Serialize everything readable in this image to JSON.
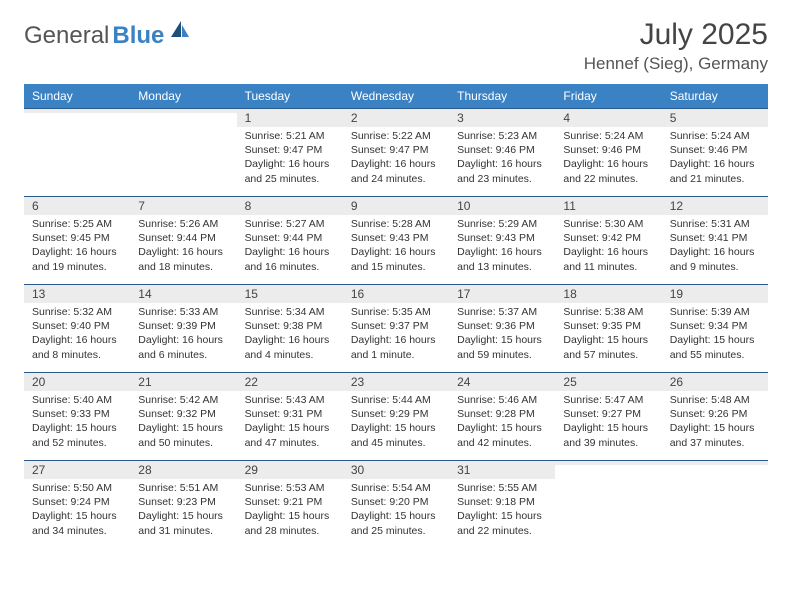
{
  "brand": {
    "part1": "General",
    "part2": "Blue"
  },
  "title": "July 2025",
  "location": "Hennef (Sieg), Germany",
  "colors": {
    "accent": "#3b82c4",
    "row_gray": "#ececec",
    "divider": "#2b5a8a",
    "background": "#ffffff"
  },
  "weekdays": [
    "Sunday",
    "Monday",
    "Tuesday",
    "Wednesday",
    "Thursday",
    "Friday",
    "Saturday"
  ],
  "weeks": [
    [
      {
        "n": "",
        "sr": "",
        "ss": "",
        "dl": ""
      },
      {
        "n": "",
        "sr": "",
        "ss": "",
        "dl": ""
      },
      {
        "n": "1",
        "sr": "5:21 AM",
        "ss": "9:47 PM",
        "dl": "16 hours and 25 minutes."
      },
      {
        "n": "2",
        "sr": "5:22 AM",
        "ss": "9:47 PM",
        "dl": "16 hours and 24 minutes."
      },
      {
        "n": "3",
        "sr": "5:23 AM",
        "ss": "9:46 PM",
        "dl": "16 hours and 23 minutes."
      },
      {
        "n": "4",
        "sr": "5:24 AM",
        "ss": "9:46 PM",
        "dl": "16 hours and 22 minutes."
      },
      {
        "n": "5",
        "sr": "5:24 AM",
        "ss": "9:46 PM",
        "dl": "16 hours and 21 minutes."
      }
    ],
    [
      {
        "n": "6",
        "sr": "5:25 AM",
        "ss": "9:45 PM",
        "dl": "16 hours and 19 minutes."
      },
      {
        "n": "7",
        "sr": "5:26 AM",
        "ss": "9:44 PM",
        "dl": "16 hours and 18 minutes."
      },
      {
        "n": "8",
        "sr": "5:27 AM",
        "ss": "9:44 PM",
        "dl": "16 hours and 16 minutes."
      },
      {
        "n": "9",
        "sr": "5:28 AM",
        "ss": "9:43 PM",
        "dl": "16 hours and 15 minutes."
      },
      {
        "n": "10",
        "sr": "5:29 AM",
        "ss": "9:43 PM",
        "dl": "16 hours and 13 minutes."
      },
      {
        "n": "11",
        "sr": "5:30 AM",
        "ss": "9:42 PM",
        "dl": "16 hours and 11 minutes."
      },
      {
        "n": "12",
        "sr": "5:31 AM",
        "ss": "9:41 PM",
        "dl": "16 hours and 9 minutes."
      }
    ],
    [
      {
        "n": "13",
        "sr": "5:32 AM",
        "ss": "9:40 PM",
        "dl": "16 hours and 8 minutes."
      },
      {
        "n": "14",
        "sr": "5:33 AM",
        "ss": "9:39 PM",
        "dl": "16 hours and 6 minutes."
      },
      {
        "n": "15",
        "sr": "5:34 AM",
        "ss": "9:38 PM",
        "dl": "16 hours and 4 minutes."
      },
      {
        "n": "16",
        "sr": "5:35 AM",
        "ss": "9:37 PM",
        "dl": "16 hours and 1 minute."
      },
      {
        "n": "17",
        "sr": "5:37 AM",
        "ss": "9:36 PM",
        "dl": "15 hours and 59 minutes."
      },
      {
        "n": "18",
        "sr": "5:38 AM",
        "ss": "9:35 PM",
        "dl": "15 hours and 57 minutes."
      },
      {
        "n": "19",
        "sr": "5:39 AM",
        "ss": "9:34 PM",
        "dl": "15 hours and 55 minutes."
      }
    ],
    [
      {
        "n": "20",
        "sr": "5:40 AM",
        "ss": "9:33 PM",
        "dl": "15 hours and 52 minutes."
      },
      {
        "n": "21",
        "sr": "5:42 AM",
        "ss": "9:32 PM",
        "dl": "15 hours and 50 minutes."
      },
      {
        "n": "22",
        "sr": "5:43 AM",
        "ss": "9:31 PM",
        "dl": "15 hours and 47 minutes."
      },
      {
        "n": "23",
        "sr": "5:44 AM",
        "ss": "9:29 PM",
        "dl": "15 hours and 45 minutes."
      },
      {
        "n": "24",
        "sr": "5:46 AM",
        "ss": "9:28 PM",
        "dl": "15 hours and 42 minutes."
      },
      {
        "n": "25",
        "sr": "5:47 AM",
        "ss": "9:27 PM",
        "dl": "15 hours and 39 minutes."
      },
      {
        "n": "26",
        "sr": "5:48 AM",
        "ss": "9:26 PM",
        "dl": "15 hours and 37 minutes."
      }
    ],
    [
      {
        "n": "27",
        "sr": "5:50 AM",
        "ss": "9:24 PM",
        "dl": "15 hours and 34 minutes."
      },
      {
        "n": "28",
        "sr": "5:51 AM",
        "ss": "9:23 PM",
        "dl": "15 hours and 31 minutes."
      },
      {
        "n": "29",
        "sr": "5:53 AM",
        "ss": "9:21 PM",
        "dl": "15 hours and 28 minutes."
      },
      {
        "n": "30",
        "sr": "5:54 AM",
        "ss": "9:20 PM",
        "dl": "15 hours and 25 minutes."
      },
      {
        "n": "31",
        "sr": "5:55 AM",
        "ss": "9:18 PM",
        "dl": "15 hours and 22 minutes."
      },
      {
        "n": "",
        "sr": "",
        "ss": "",
        "dl": ""
      },
      {
        "n": "",
        "sr": "",
        "ss": "",
        "dl": ""
      }
    ]
  ],
  "labels": {
    "sunrise": "Sunrise:",
    "sunset": "Sunset:",
    "daylight": "Daylight:"
  }
}
